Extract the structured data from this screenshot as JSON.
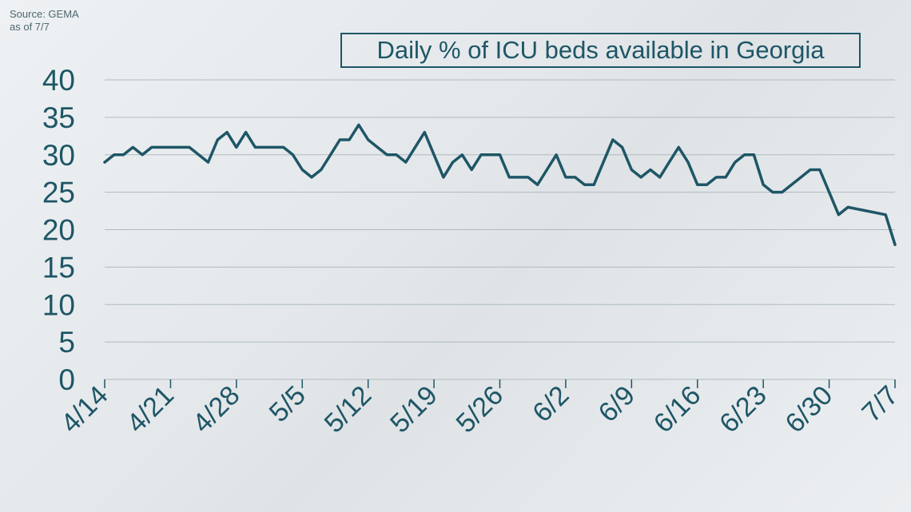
{
  "source": {
    "line1": "Source: GEMA",
    "line2": "as of 7/7"
  },
  "chart_data": {
    "type": "line",
    "title": "Daily % of ICU beds available in Georgia",
    "xlabel": "",
    "ylabel": "",
    "ylim": [
      0,
      40
    ],
    "yticks": [
      "0",
      "5",
      "10",
      "15",
      "20",
      "25",
      "30",
      "35",
      "40"
    ],
    "xticks": [
      "4/14",
      "4/21",
      "4/28",
      "5/5",
      "5/12",
      "5/19",
      "5/26",
      "6/2",
      "6/9",
      "6/16",
      "6/23",
      "6/30",
      "7/7"
    ],
    "grid": true,
    "color": "#1e5666",
    "x": [
      "4/14",
      "4/15",
      "4/16",
      "4/17",
      "4/18",
      "4/19",
      "4/20",
      "4/21",
      "4/22",
      "4/23",
      "4/24",
      "4/25",
      "4/26",
      "4/27",
      "4/28",
      "4/29",
      "4/30",
      "5/1",
      "5/2",
      "5/3",
      "5/4",
      "5/5",
      "5/6",
      "5/7",
      "5/8",
      "5/9",
      "5/10",
      "5/11",
      "5/12",
      "5/13",
      "5/14",
      "5/15",
      "5/16",
      "5/17",
      "5/18",
      "5/19",
      "5/20",
      "5/21",
      "5/22",
      "5/23",
      "5/24",
      "5/25",
      "5/26",
      "5/27",
      "5/28",
      "5/29",
      "5/30",
      "5/31",
      "6/1",
      "6/2",
      "6/3",
      "6/4",
      "6/5",
      "6/6",
      "6/7",
      "6/8",
      "6/9",
      "6/10",
      "6/11",
      "6/12",
      "6/13",
      "6/14",
      "6/15",
      "6/16",
      "6/17",
      "6/18",
      "6/19",
      "6/20",
      "6/21",
      "6/22",
      "6/23",
      "6/24",
      "6/25",
      "6/26",
      "6/27",
      "6/28",
      "6/29",
      "6/30",
      "7/1",
      "7/2",
      "7/6",
      "7/7"
    ],
    "values": [
      29,
      30,
      30,
      31,
      30,
      31,
      31,
      31,
      31,
      31,
      30,
      29,
      32,
      33,
      31,
      33,
      31,
      31,
      31,
      31,
      30,
      28,
      27,
      28,
      30,
      32,
      32,
      34,
      32,
      31,
      30,
      30,
      29,
      31,
      33,
      30,
      27,
      29,
      30,
      28,
      30,
      30,
      30,
      27,
      27,
      27,
      26,
      28,
      30,
      27,
      27,
      26,
      26,
      29,
      32,
      31,
      28,
      27,
      28,
      27,
      29,
      31,
      29,
      26,
      26,
      27,
      27,
      29,
      30,
      30,
      26,
      25,
      25,
      26,
      27,
      28,
      28,
      25,
      22,
      23,
      22,
      18
    ]
  }
}
